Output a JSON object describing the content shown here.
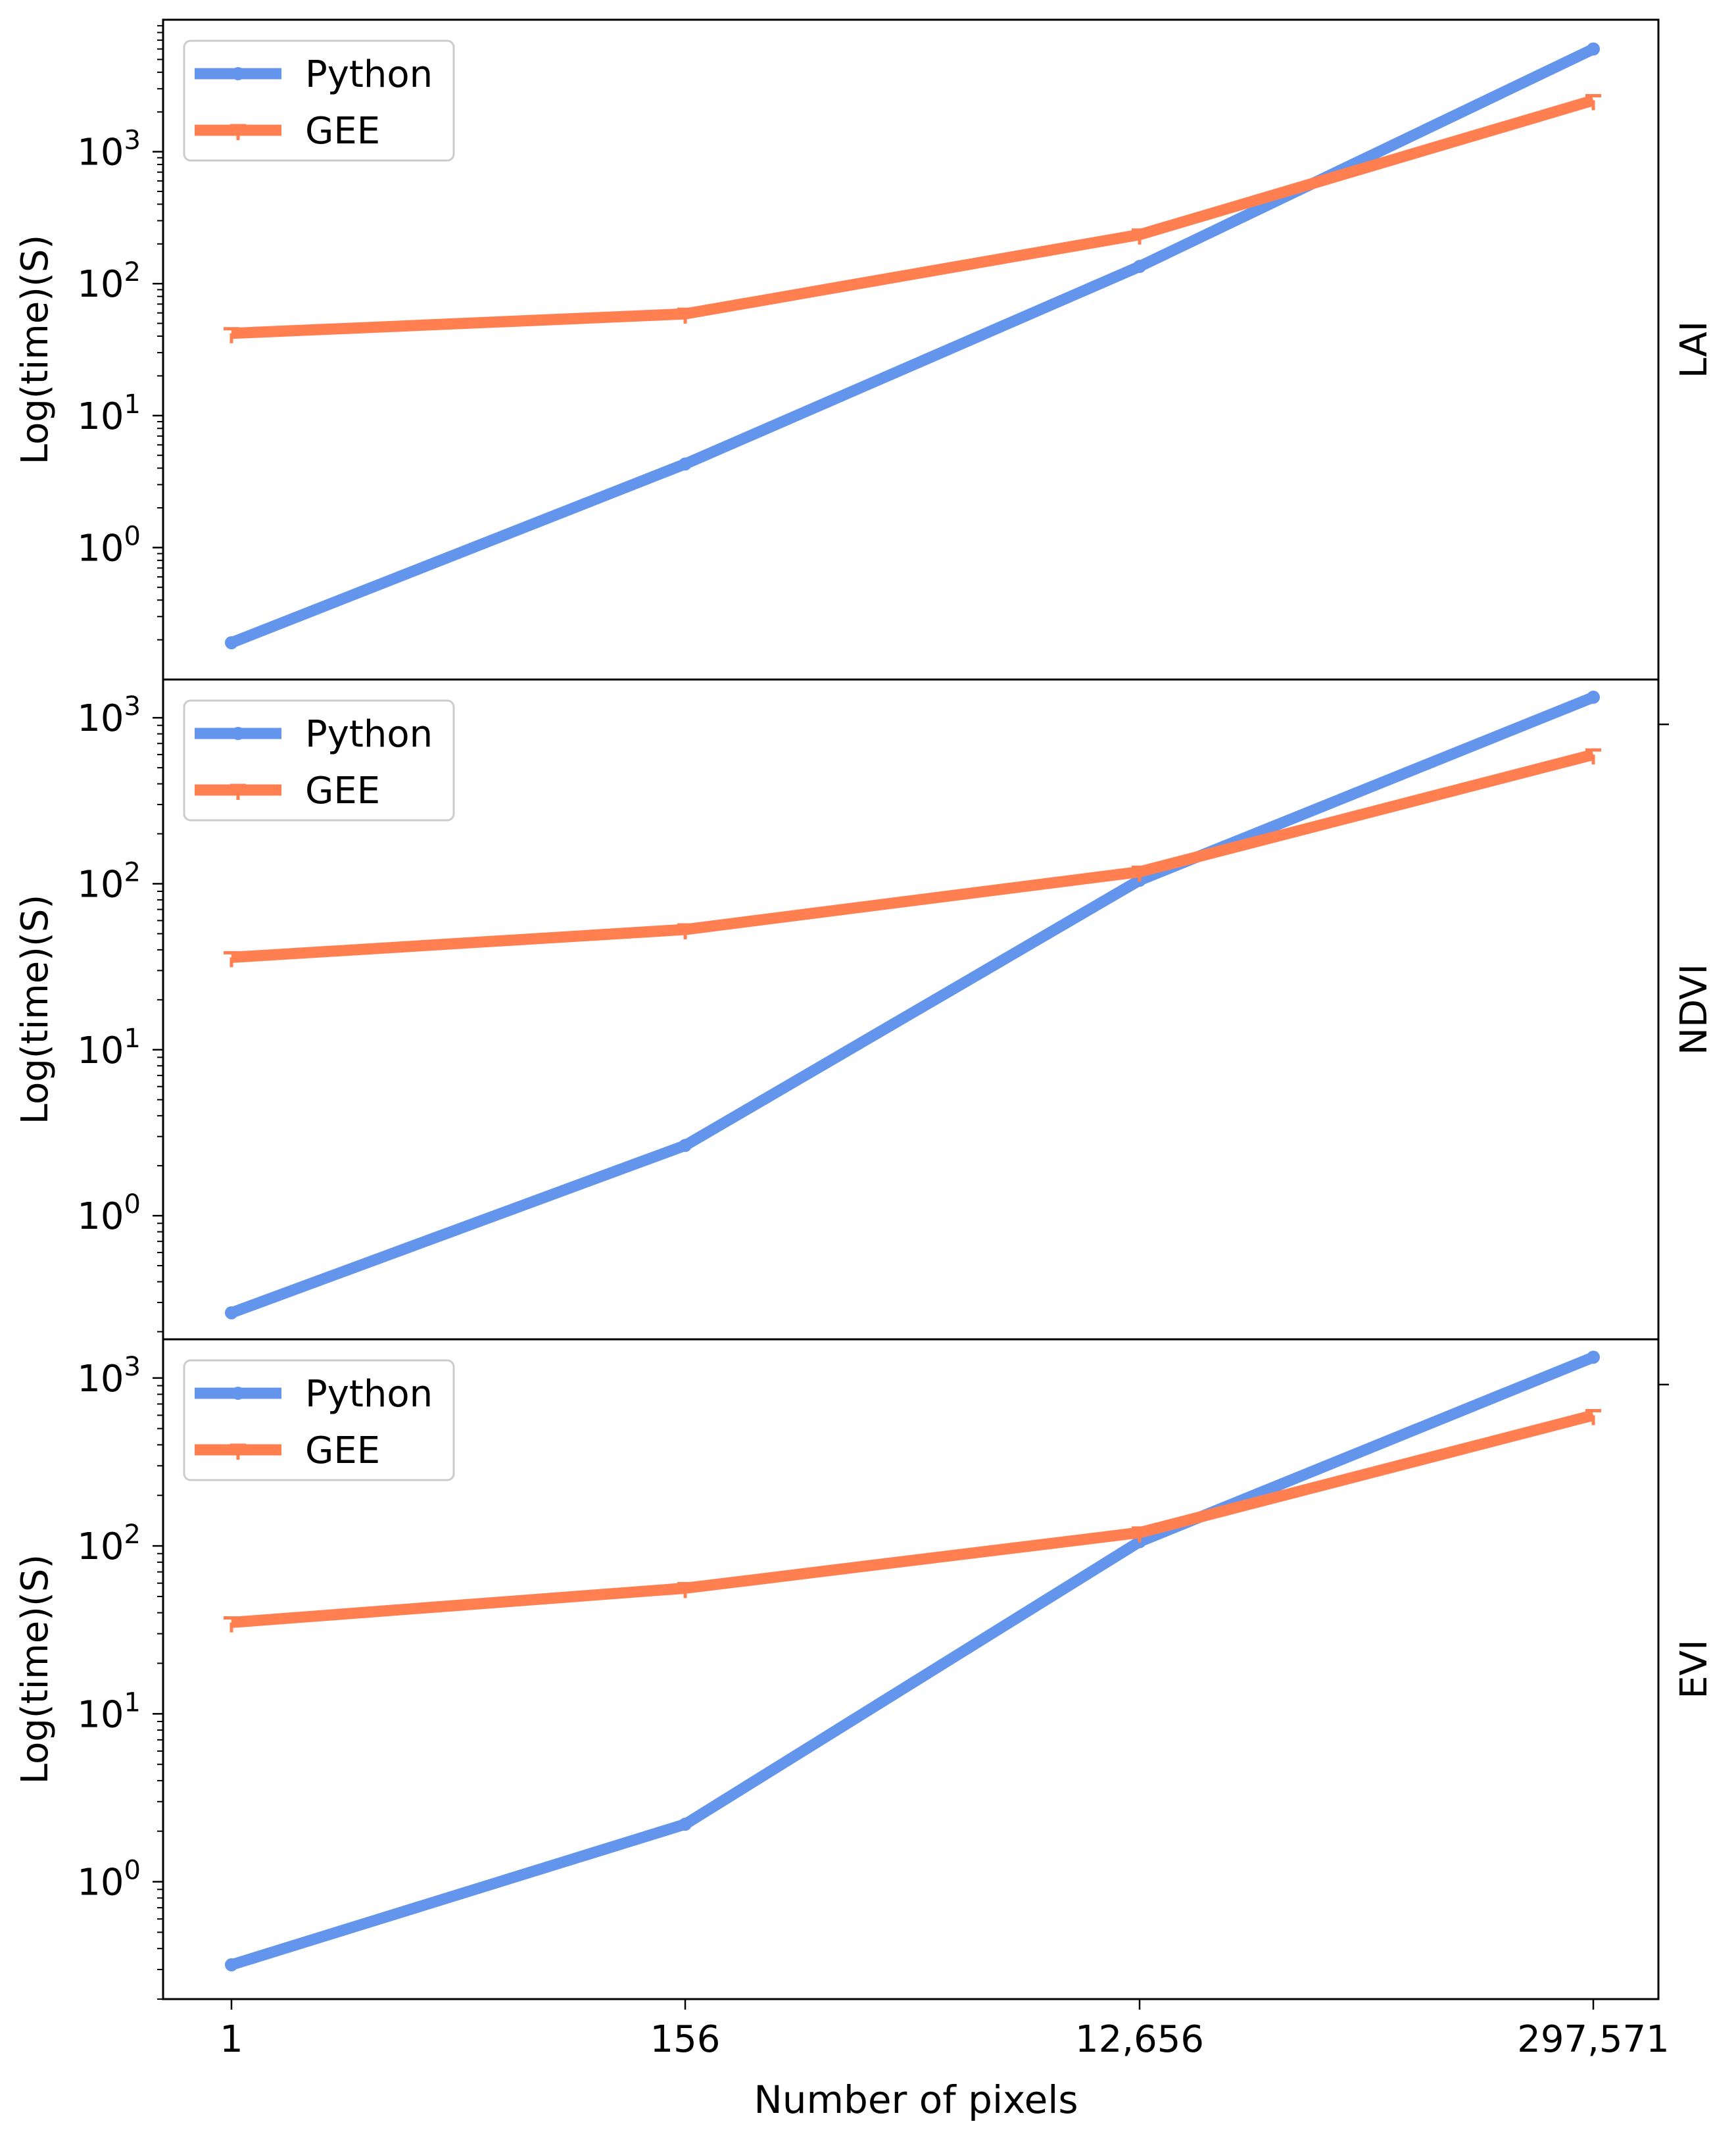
{
  "figure": {
    "xlabel": "Number of pixels",
    "ylabel": "Log(time)(S)",
    "legend_location": "top-left"
  },
  "colors": {
    "python": "#6495ED",
    "gee": "#FF7F50",
    "frame": "#000000",
    "legend_border": "#cccccc"
  },
  "chart_data": [
    {
      "type": "line",
      "panel_label": "LAI",
      "y_scale": "log",
      "categories": [
        "1",
        "156",
        "12,656",
        "297,571"
      ],
      "ylim": [
        0.1,
        10000
      ],
      "yticks": [
        {
          "value": 1,
          "base": "10",
          "exp": "0"
        },
        {
          "value": 10,
          "base": "10",
          "exp": "1"
        },
        {
          "value": 100,
          "base": "10",
          "exp": "2"
        },
        {
          "value": 1000,
          "base": "10",
          "exp": "3"
        }
      ],
      "series": [
        {
          "name": "Python",
          "marker": "circle",
          "values": [
            0.19,
            4.3,
            135,
            6000
          ]
        },
        {
          "name": "GEE",
          "marker": "tri_down",
          "values": [
            42,
            59,
            235,
            2450
          ]
        }
      ]
    },
    {
      "type": "line",
      "panel_label": "NDVI",
      "y_scale": "log",
      "categories": [
        "1",
        "156",
        "12,656",
        "297,571"
      ],
      "ylim": [
        0.18,
        1700
      ],
      "yticks": [
        {
          "value": 1,
          "base": "10",
          "exp": "0"
        },
        {
          "value": 10,
          "base": "10",
          "exp": "1"
        },
        {
          "value": 100,
          "base": "10",
          "exp": "2"
        },
        {
          "value": 1000,
          "base": "10",
          "exp": "3"
        }
      ],
      "series": [
        {
          "name": "Python",
          "marker": "circle",
          "values": [
            0.26,
            2.65,
            105,
            1330
          ]
        },
        {
          "name": "GEE",
          "marker": "tri_down",
          "values": [
            36,
            53,
            118,
            600
          ]
        }
      ]
    },
    {
      "type": "line",
      "panel_label": "EVI",
      "y_scale": "log",
      "categories": [
        "1",
        "156",
        "12,656",
        "297,571"
      ],
      "ylim": [
        0.2,
        1700
      ],
      "yticks": [
        {
          "value": 1,
          "base": "10",
          "exp": "0"
        },
        {
          "value": 10,
          "base": "10",
          "exp": "1"
        },
        {
          "value": 100,
          "base": "10",
          "exp": "2"
        },
        {
          "value": 1000,
          "base": "10",
          "exp": "3"
        }
      ],
      "series": [
        {
          "name": "Python",
          "marker": "circle",
          "values": [
            0.32,
            2.2,
            106,
            1330
          ]
        },
        {
          "name": "GEE",
          "marker": "tri_down",
          "values": [
            35,
            56,
            120,
            600
          ]
        }
      ]
    }
  ]
}
